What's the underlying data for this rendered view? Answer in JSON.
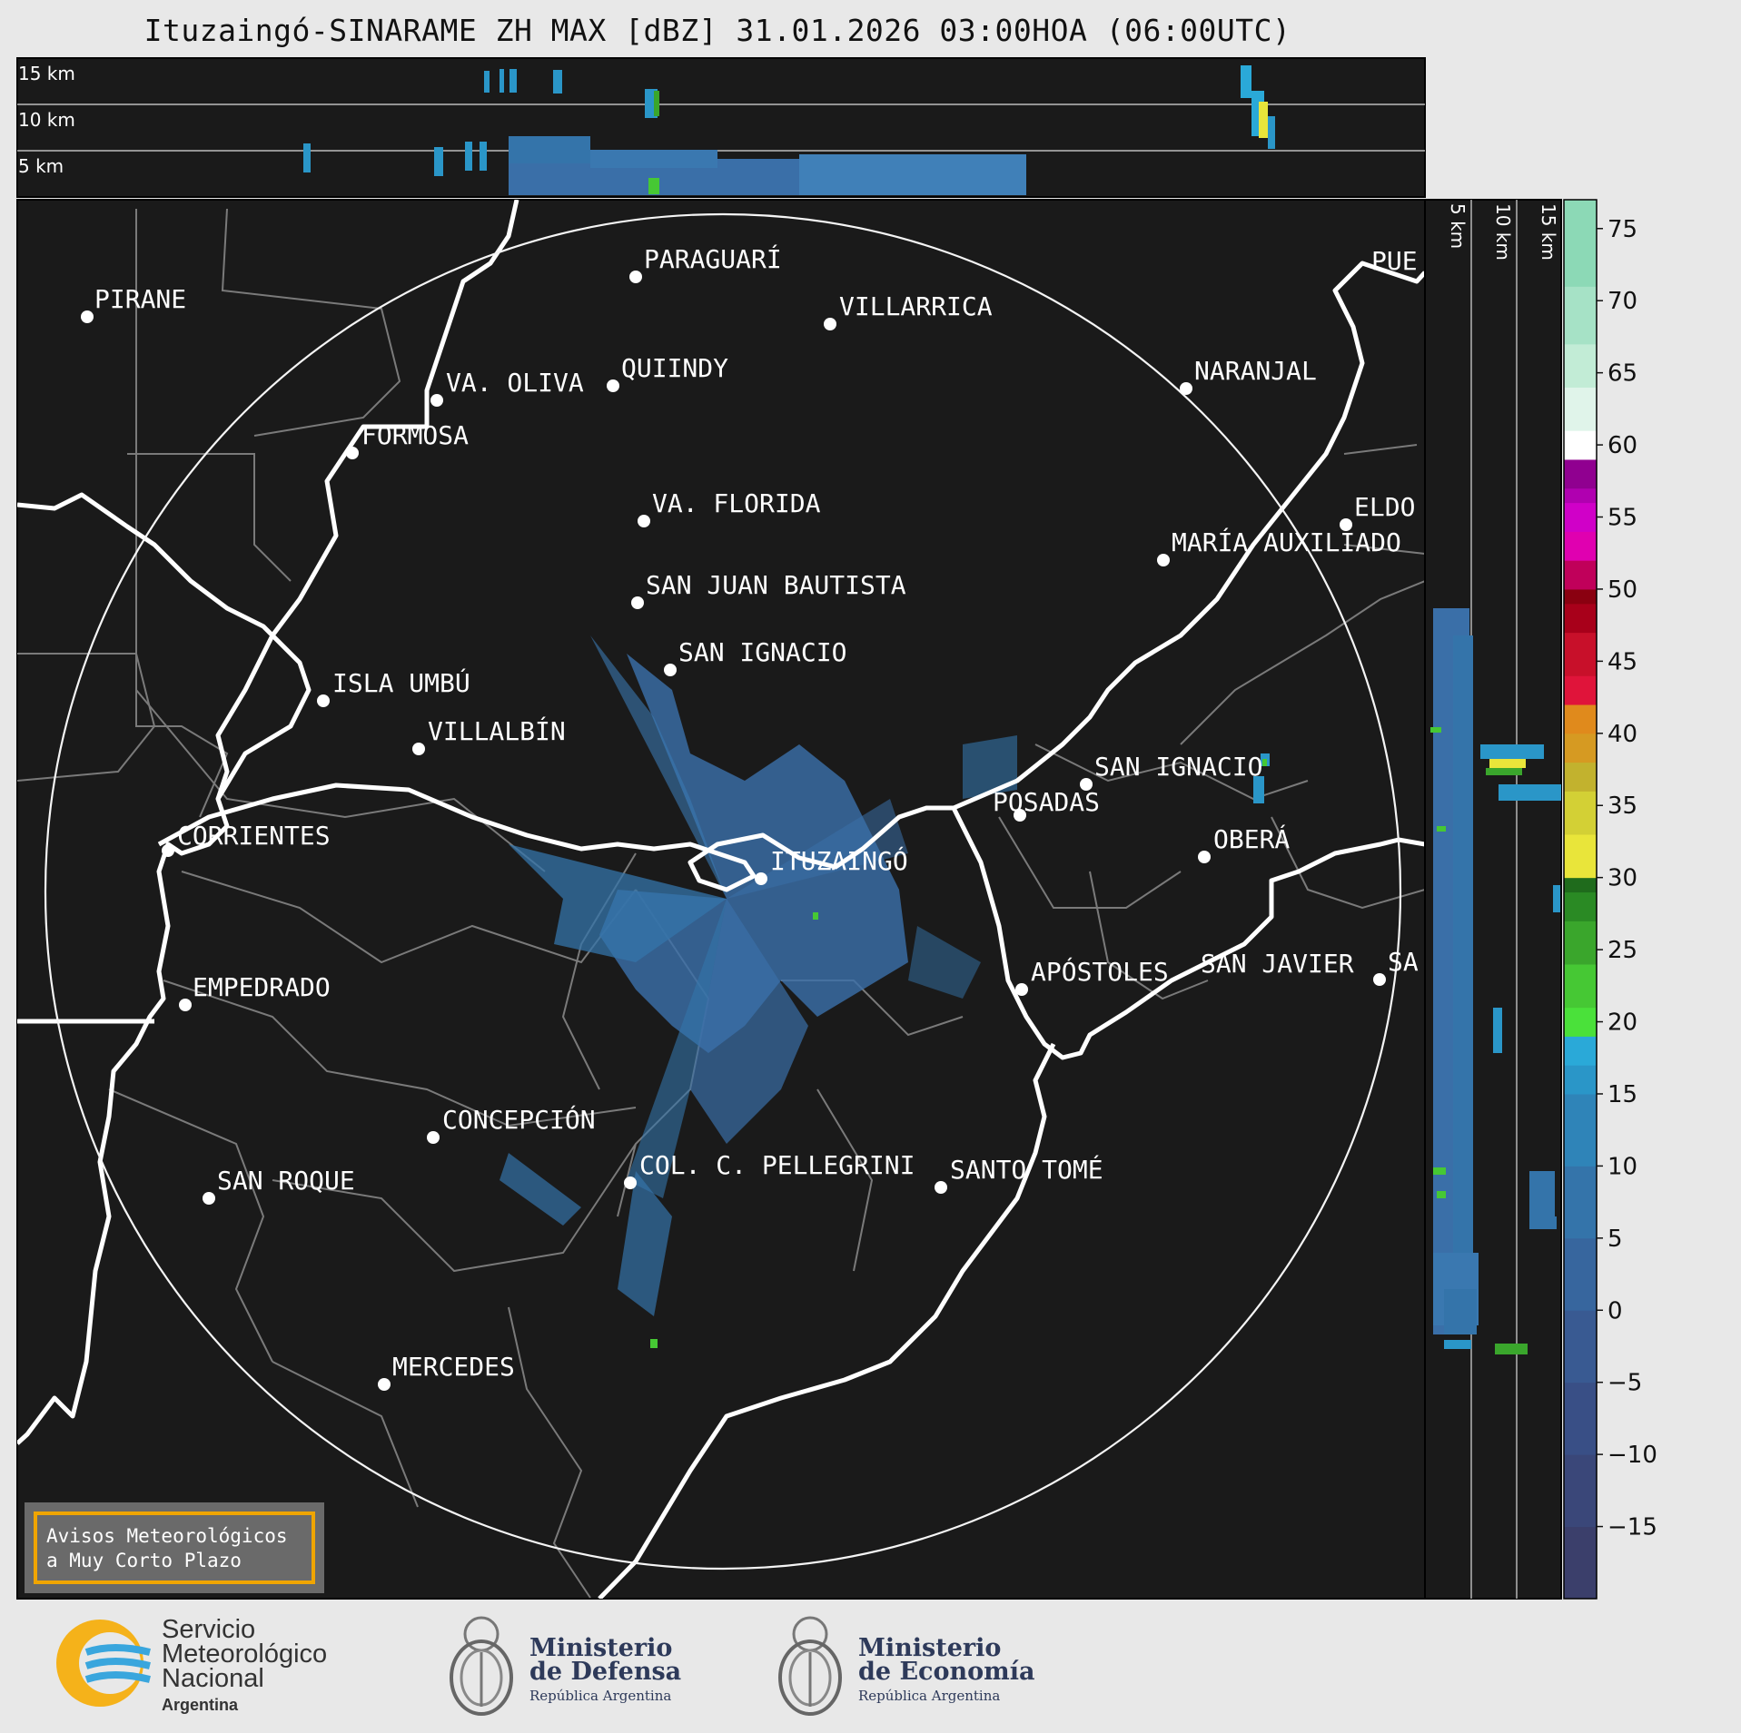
{
  "title": "Ituzaingó-SINARAME ZH MAX [dBZ] 31.01.2026 03:00HOA (06:00UTC)",
  "top_panel": {
    "labels": [
      "15 km",
      "10 km",
      "5 km"
    ]
  },
  "side_panel": {
    "labels": [
      "5 km",
      "10 km",
      "15 km"
    ]
  },
  "radar_site": "ITUZAINGÓ",
  "cities": [
    {
      "name": "PARAGUARÍ"
    },
    {
      "name": "VILLARRICA"
    },
    {
      "name": "PIRANE"
    },
    {
      "name": "VA. OLIVA"
    },
    {
      "name": "QUIINDY"
    },
    {
      "name": "NARANJAL"
    },
    {
      "name": "FORMOSA"
    },
    {
      "name": "VA. FLORIDA"
    },
    {
      "name": "ELDO"
    },
    {
      "name": "MARÍA AUXILIADO"
    },
    {
      "name": "SAN JUAN BAUTISTA"
    },
    {
      "name": "SAN IGNACIO"
    },
    {
      "name": "ISLA UMBÚ"
    },
    {
      "name": "VILLALBÍN"
    },
    {
      "name": "SAN IGNACIO"
    },
    {
      "name": "POSADAS"
    },
    {
      "name": "CORRIENTES"
    },
    {
      "name": "ITUZAINGÓ"
    },
    {
      "name": "OBERÁ"
    },
    {
      "name": "EMPEDRADO"
    },
    {
      "name": "APÓSTOLES"
    },
    {
      "name": "SAN JAVIER"
    },
    {
      "name": "SA"
    },
    {
      "name": "CONCEPCIÓN"
    },
    {
      "name": "COL. C. PELLEGRINI"
    },
    {
      "name": "SANTO TOMÉ"
    },
    {
      "name": "SAN ROQUE"
    },
    {
      "name": "MERCEDES"
    },
    {
      "name": "PUE"
    }
  ],
  "colorbar": {
    "unit": "dBZ",
    "ticks": [
      "75",
      "70",
      "65",
      "60",
      "55",
      "50",
      "45",
      "40",
      "35",
      "30",
      "25",
      "20",
      "15",
      "10",
      "5",
      "0",
      "−5",
      "−10",
      "−15"
    ],
    "tick_values": [
      75,
      70,
      65,
      60,
      55,
      50,
      45,
      40,
      35,
      30,
      25,
      20,
      15,
      10,
      5,
      0,
      -5,
      -10,
      -15
    ],
    "range": [
      -20,
      77
    ],
    "stops": [
      {
        "from": -20,
        "color": "#3b3f6b"
      },
      {
        "from": -15,
        "color": "#3a4779"
      },
      {
        "from": -10,
        "color": "#394f86"
      },
      {
        "from": -5,
        "color": "#395a92"
      },
      {
        "from": 0,
        "color": "#37669e"
      },
      {
        "from": 5,
        "color": "#3474aa"
      },
      {
        "from": 10,
        "color": "#2f84b8"
      },
      {
        "from": 15,
        "color": "#2a96c8"
      },
      {
        "from": 17,
        "color": "#2aa9d8"
      },
      {
        "from": 19,
        "color": "#4ae13a"
      },
      {
        "from": 21,
        "color": "#46c834"
      },
      {
        "from": 24,
        "color": "#3aa62c"
      },
      {
        "from": 27,
        "color": "#2a8a24"
      },
      {
        "from": 29,
        "color": "#1f6b1c"
      },
      {
        "from": 30,
        "color": "#e9e53a"
      },
      {
        "from": 33,
        "color": "#d3d035"
      },
      {
        "from": 36,
        "color": "#c2b22e"
      },
      {
        "from": 38,
        "color": "#d69a22"
      },
      {
        "from": 40,
        "color": "#e08a1c"
      },
      {
        "from": 42,
        "color": "#e0143a"
      },
      {
        "from": 44,
        "color": "#c8102a"
      },
      {
        "from": 47,
        "color": "#a8001a"
      },
      {
        "from": 49,
        "color": "#8a0010"
      },
      {
        "from": 50,
        "color": "#c0005a"
      },
      {
        "from": 52,
        "color": "#e000b0"
      },
      {
        "from": 54,
        "color": "#d000c8"
      },
      {
        "from": 56,
        "color": "#b000b0"
      },
      {
        "from": 57,
        "color": "#900090"
      },
      {
        "from": 59,
        "color": "#ffffff"
      },
      {
        "from": 61,
        "color": "#e0f4ea"
      },
      {
        "from": 64,
        "color": "#c2ecd6"
      },
      {
        "from": 67,
        "color": "#a6e2c6"
      },
      {
        "from": 71,
        "color": "#8cd9b6"
      }
    ]
  },
  "warning_box": {
    "line1": "Avisos Meteorológicos",
    "line2": "a Muy Corto Plazo"
  },
  "logos": {
    "smn": {
      "line1": "Servicio",
      "line2": "Meteorológico",
      "line3": "Nacional",
      "line4": "Argentina"
    },
    "defensa": {
      "line1": "Ministerio",
      "line2": "de Defensa",
      "line3": "República Argentina"
    },
    "economia": {
      "line1": "Ministerio",
      "line2": "de Economía",
      "line3": "República Argentina"
    }
  },
  "colors": {
    "panel_bg": "#1a1a1a",
    "page_bg": "#e8e8e8",
    "accent": "#f0a500",
    "echo": "#3a6fa8"
  }
}
